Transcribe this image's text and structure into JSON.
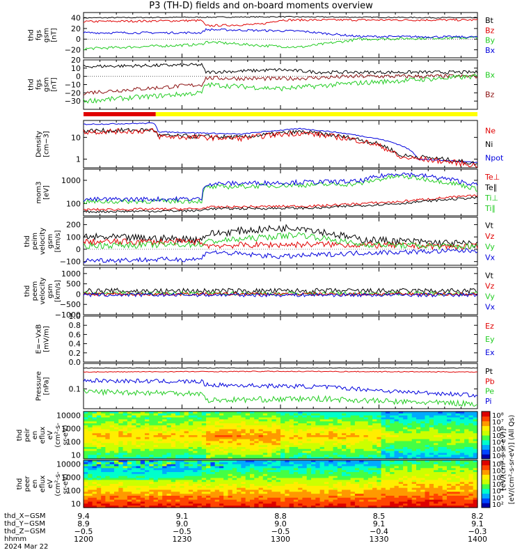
{
  "title": "P3 (TH-D) fields and on-board moments overview",
  "colors": {
    "black": "#000000",
    "red": "#e00000",
    "green": "#22cc22",
    "blue": "#0000dd",
    "darkred": "#8b1010",
    "yellow": "#ffff00"
  },
  "panels": [
    {
      "id": "fgs_gsm",
      "ylabel": [
        "thd",
        "fgs",
        "gsm",
        "[nT]"
      ],
      "ylim": [
        -35,
        50
      ],
      "yticks": [
        "40",
        "20",
        "0",
        "−20"
      ],
      "yticks_values": [
        40,
        20,
        0,
        -20
      ],
      "legend": [
        {
          "text": "Bt",
          "color": "black"
        },
        {
          "text": "Bz",
          "color": "red"
        },
        {
          "text": "By",
          "color": "green"
        },
        {
          "text": "Bx",
          "color": "blue"
        }
      ]
    },
    {
      "id": "fgs_dsl",
      "ylabel": [
        "thd",
        "fgs",
        "gsm",
        "[nT]"
      ],
      "ylim": [
        -40,
        20
      ],
      "yticks": [
        "20",
        "10",
        "0",
        "−10",
        "−20",
        "−30"
      ],
      "yticks_values": [
        20,
        10,
        0,
        -10,
        -20,
        -30
      ],
      "legend": [
        {
          "text": "Bx",
          "color": "green"
        },
        {
          "text": "Bz",
          "color": "darkred"
        }
      ]
    },
    {
      "id": "density",
      "ylabel": [
        "Density",
        "[cm−3]"
      ],
      "ylim": [
        0.4,
        60
      ],
      "log": true,
      "yticks": [
        "10",
        "1"
      ],
      "yticks_values": [
        10,
        1
      ],
      "legend": [
        {
          "text": "Ne",
          "color": "red"
        },
        {
          "text": "Ni",
          "color": "black"
        },
        {
          "text": "Npot",
          "color": "blue"
        }
      ]
    },
    {
      "id": "temp",
      "ylabel": [
        "mom3",
        "[eV]"
      ],
      "ylim": [
        30,
        3000
      ],
      "log": true,
      "yticks": [
        "1000",
        "100"
      ],
      "yticks_values": [
        1000,
        100
      ],
      "legend": [
        {
          "text": "Te⊥",
          "color": "red"
        },
        {
          "text": "Te∥",
          "color": "black"
        },
        {
          "text": "Ti⊥",
          "color": "green"
        },
        {
          "text": "Ti∥",
          "color": "green"
        }
      ]
    },
    {
      "id": "vi",
      "ylabel": [
        "thd",
        "peim",
        "velocity",
        "gsm",
        "[km/s]"
      ],
      "ylim": [
        -130,
        260
      ],
      "yticks": [
        "200",
        "100",
        "0",
        "−100"
      ],
      "yticks_values": [
        200,
        100,
        0,
        -100
      ],
      "legend": [
        {
          "text": "Vt",
          "color": "black"
        },
        {
          "text": "Vz",
          "color": "red"
        },
        {
          "text": "Vy",
          "color": "green"
        },
        {
          "text": "Vx",
          "color": "blue"
        }
      ]
    },
    {
      "id": "ve",
      "ylabel": [
        "thd",
        "peem",
        "velocity",
        "gsm",
        "[km/s]"
      ],
      "ylim": [
        -1000,
        1300
      ],
      "yticks": [
        "1000",
        "500",
        "0",
        "−500",
        "−1000"
      ],
      "yticks_values": [
        1000,
        500,
        0,
        -500,
        -1000
      ],
      "legend": [
        {
          "text": "Vt",
          "color": "black"
        },
        {
          "text": "Vz",
          "color": "red"
        },
        {
          "text": "Vy",
          "color": "green"
        },
        {
          "text": "Vx",
          "color": "blue"
        }
      ]
    },
    {
      "id": "efield",
      "ylabel": [
        "E=−VxB",
        "[mV/m]"
      ],
      "ylim": [
        0,
        1
      ],
      "yticks": [
        "1.0",
        "0.8",
        "0.6",
        "0.4",
        "0.2",
        "0.0"
      ],
      "yticks_values": [
        1,
        0.8,
        0.6,
        0.4,
        0.2,
        0
      ],
      "legend": [
        {
          "text": "Ez",
          "color": "red"
        },
        {
          "text": "Ey",
          "color": "green"
        },
        {
          "text": "Ex",
          "color": "blue"
        }
      ]
    },
    {
      "id": "pressure",
      "ylabel": [
        "Pressure",
        "[nPa]"
      ],
      "ylim": [
        0.02,
        0.8
      ],
      "log": true,
      "yticks": [
        "0.1"
      ],
      "yticks_values": [
        0.1
      ],
      "legend": [
        {
          "text": "Pt",
          "color": "black"
        },
        {
          "text": "Pb",
          "color": "red"
        },
        {
          "text": "Pe",
          "color": "green"
        },
        {
          "text": "Pi",
          "color": "blue"
        }
      ]
    },
    {
      "id": "peir",
      "ylabel": [
        "thd",
        "peir",
        "en",
        "eflux",
        "eV",
        "(cm²-s-",
        "sr-eV)"
      ],
      "ylim": [
        5,
        20000
      ],
      "log": true,
      "yticks": [
        "10000",
        "1000",
        "100",
        "10"
      ],
      "yticks_values": [
        10000,
        1000,
        100,
        10
      ],
      "spectrogram": true
    },
    {
      "id": "peer",
      "ylabel": [
        "thd",
        "peer",
        "en",
        "eflux",
        "eV",
        "(cm²-s-",
        "sr-eV)"
      ],
      "ylim": [
        5,
        20000
      ],
      "log": true,
      "yticks": [
        "10000",
        "1000",
        "100",
        "10"
      ],
      "yticks_values": [
        10000,
        1000,
        100,
        10
      ],
      "spectrogram": true
    }
  ],
  "colorbar": {
    "ticks": [
      "10⁸",
      "10⁷",
      "10⁶",
      "10⁵",
      "10⁴",
      "10³",
      "10²"
    ],
    "label": "[eV/(cm²-s-sr-eV)] (All Qs)",
    "label2": "[eV/(cm²-s-sr-eV)]"
  },
  "mode_bar": {
    "segments": [
      {
        "color": "red",
        "from": "12:00",
        "to": "12:22"
      },
      {
        "color": "yellow",
        "from": "12:22",
        "to": "14:00"
      }
    ]
  },
  "footer": {
    "rows": [
      "thd_X−GSM",
      "thd_Y−GSM",
      "thd_Z−GSM",
      "hhmm",
      "2024 Mar 22"
    ],
    "ticks": [
      {
        "x": "9.4",
        "y": "8.9",
        "z": "−0.5",
        "hhmm": "1200"
      },
      {
        "x": "9.1",
        "y": "9.0",
        "z": "−0.5",
        "hhmm": "1230"
      },
      {
        "x": "8.8",
        "y": "9.0",
        "z": "−0.5",
        "hhmm": "1300"
      },
      {
        "x": "8.5",
        "y": "9.1",
        "z": "−0.4",
        "hhmm": "1330"
      },
      {
        "x": "8.2",
        "y": "9.1",
        "z": "−0.3",
        "hhmm": "1400"
      }
    ]
  },
  "chart_data": {
    "type": "line",
    "x": [
      "12:00",
      "12:30",
      "13:00",
      "13:30",
      "14:00"
    ],
    "series": [
      {
        "name": "Bt",
        "panel": "fgs_gsm",
        "values": [
          40,
          42,
          44,
          40,
          40
        ]
      },
      {
        "name": "Bz",
        "panel": "fgs_gsm",
        "values": [
          32,
          35,
          35,
          37,
          36
        ]
      },
      {
        "name": "By",
        "panel": "fgs_gsm",
        "values": [
          -18,
          -15,
          -10,
          3,
          3
        ]
      },
      {
        "name": "Bx",
        "panel": "fgs_gsm",
        "values": [
          12,
          12,
          14,
          3,
          5
        ]
      },
      {
        "name": "Ne",
        "panel": "density",
        "values": [
          22,
          15,
          18,
          1.2,
          0.5
        ]
      },
      {
        "name": "Npot",
        "panel": "density",
        "values": [
          40,
          18,
          25,
          1.5,
          0.6
        ]
      },
      {
        "name": "Ti⊥",
        "panel": "temp",
        "values": [
          140,
          900,
          900,
          1500,
          500
        ]
      },
      {
        "name": "Te⊥",
        "panel": "temp",
        "values": [
          50,
          60,
          60,
          150,
          250
        ]
      },
      {
        "name": "Vt",
        "panel": "vi",
        "values": [
          90,
          80,
          180,
          60,
          40
        ]
      },
      {
        "name": "Pt",
        "panel": "pressure",
        "values": [
          0.5,
          0.5,
          0.5,
          0.5,
          0.5
        ]
      },
      {
        "name": "Pb",
        "panel": "pressure",
        "values": [
          0.35,
          0.4,
          0.4,
          0.38,
          0.38
        ]
      },
      {
        "name": "Pi",
        "panel": "pressure",
        "values": [
          0.15,
          0.12,
          0.12,
          0.05,
          0.05
        ]
      },
      {
        "name": "Pe",
        "panel": "pressure",
        "values": [
          0.08,
          0.05,
          0.04,
          0.03,
          0.03
        ]
      }
    ]
  }
}
